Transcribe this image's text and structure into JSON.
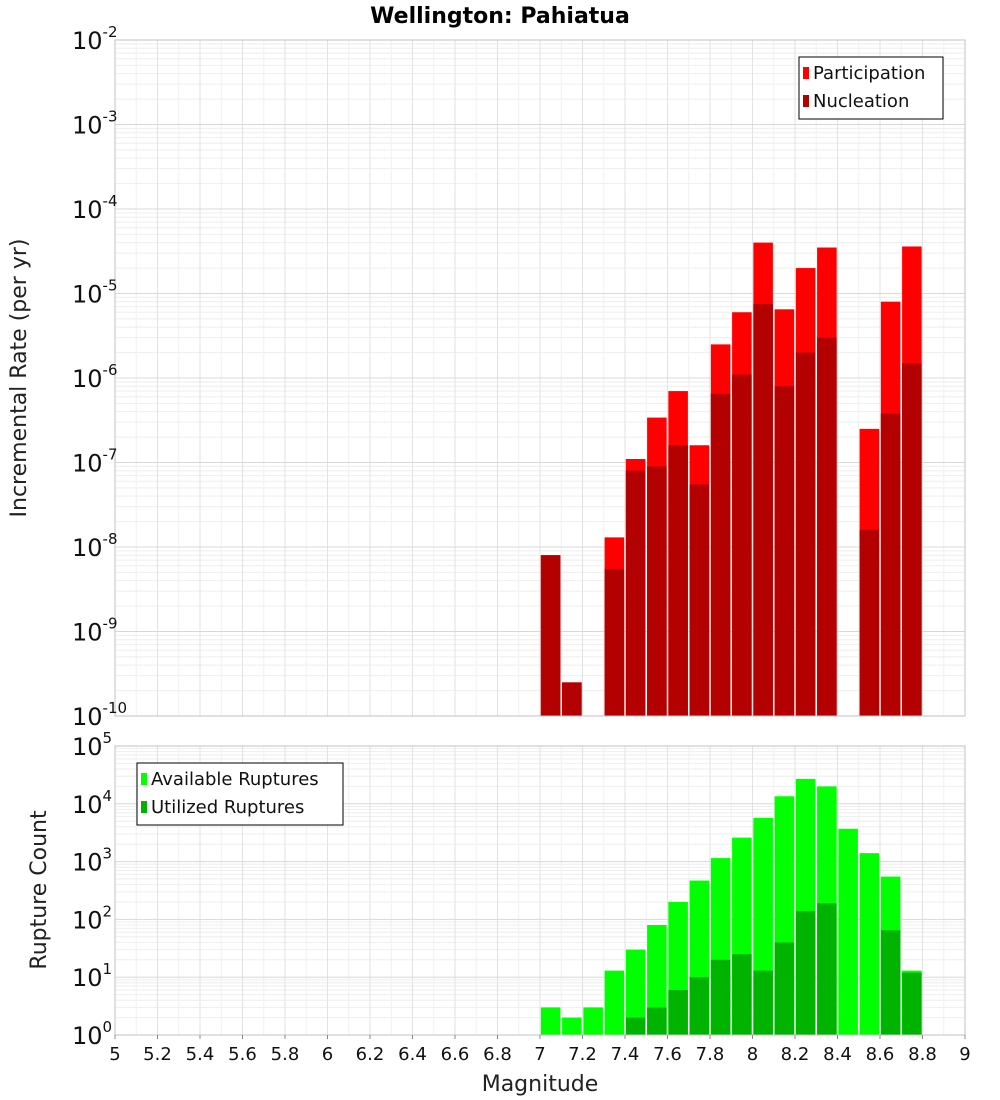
{
  "chart_data": [
    {
      "type": "bar",
      "title": "Wellington: Pahiatua",
      "xlabel": "Magnitude",
      "ylabel": "Incremental Rate (per yr)",
      "yscale": "log",
      "xlim": [
        5,
        9
      ],
      "ylim": [
        1e-10,
        0.01
      ],
      "grid": true,
      "legend_position": "top-right",
      "x": [
        7.05,
        7.15,
        7.25,
        7.35,
        7.45,
        7.55,
        7.65,
        7.75,
        7.85,
        7.95,
        8.05,
        8.15,
        8.25,
        8.35,
        8.45,
        8.55,
        8.65,
        8.75
      ],
      "series": [
        {
          "name": "Participation",
          "color": "#ff0000",
          "values": [
            8e-09,
            2.5e-10,
            null,
            1.3e-08,
            1.1e-07,
            3.4e-07,
            7e-07,
            1.6e-07,
            2.5e-06,
            6e-06,
            4e-05,
            6.5e-06,
            2e-05,
            3.5e-05,
            null,
            2.5e-07,
            8e-06,
            3.6e-05
          ]
        },
        {
          "name": "Nucleation",
          "color": "#b30000",
          "values": [
            8e-09,
            2.5e-10,
            null,
            5.5e-09,
            8e-08,
            9e-08,
            1.6e-07,
            5.5e-08,
            6.5e-07,
            1.1e-06,
            7.5e-06,
            8e-07,
            2e-06,
            3e-06,
            null,
            1.6e-08,
            3.8e-07,
            1.5e-06
          ]
        }
      ]
    },
    {
      "type": "bar",
      "xlabel": "Magnitude",
      "ylabel": "Rupture Count",
      "yscale": "log",
      "xlim": [
        5,
        9
      ],
      "ylim": [
        1,
        100000
      ],
      "xticks": [
        "5",
        "5.2",
        "5.4",
        "5.6",
        "5.8",
        "6",
        "6.2",
        "6.4",
        "6.6",
        "6.8",
        "7",
        "7.2",
        "7.4",
        "7.6",
        "7.8",
        "8",
        "8.2",
        "8.4",
        "8.6",
        "8.8",
        "9"
      ],
      "grid": true,
      "legend_position": "top-left",
      "x": [
        7.05,
        7.15,
        7.25,
        7.35,
        7.45,
        7.55,
        7.65,
        7.75,
        7.85,
        7.95,
        8.05,
        8.15,
        8.25,
        8.35,
        8.45,
        8.55,
        8.65,
        8.75
      ],
      "series": [
        {
          "name": "Available Ruptures",
          "color": "#00ff00",
          "values": [
            3,
            2,
            3,
            13,
            30,
            80,
            200,
            470,
            1150,
            2600,
            5700,
            13500,
            27000,
            20000,
            3700,
            1400,
            550,
            13
          ]
        },
        {
          "name": "Utilized Ruptures",
          "color": "#00b300",
          "values": [
            1,
            1,
            null,
            1,
            2,
            3,
            6,
            10,
            20,
            25,
            13,
            40,
            140,
            190,
            null,
            1,
            65,
            12
          ]
        }
      ]
    }
  ]
}
